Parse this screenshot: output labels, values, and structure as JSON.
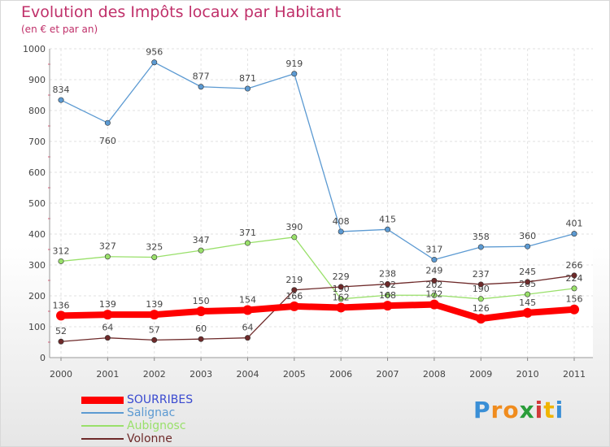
{
  "chart_data": {
    "type": "line",
    "title": "Evolution des Impôts locaux par Habitant",
    "subtitle": "(en € et par an)",
    "xlabel": "",
    "ylabel": "",
    "ylim": [
      0,
      1000
    ],
    "yticks": [
      0,
      100,
      200,
      300,
      400,
      500,
      600,
      700,
      800,
      900,
      1000
    ],
    "x": [
      "2000",
      "2001",
      "2002",
      "2003",
      "2004",
      "2005",
      "2006",
      "2007",
      "2008",
      "2009",
      "2010",
      "2011"
    ],
    "grid": true,
    "legend_position": "bottom-left",
    "series": [
      {
        "name": "SOURRIBES",
        "color": "#ff0000",
        "values": [
          136,
          139,
          139,
          150,
          154,
          166,
          162,
          168,
          172,
          126,
          145,
          156
        ],
        "labels": [
          "136",
          "139",
          "139",
          "150",
          "154",
          "166",
          "162",
          "168",
          "172",
          "126",
          "145",
          "156"
        ]
      },
      {
        "name": "Salignac",
        "color": "#5c9ad2",
        "values": [
          834,
          760,
          956,
          877,
          871,
          919,
          408,
          415,
          317,
          358,
          360,
          401
        ],
        "labels": [
          "834",
          "760",
          "956",
          "877",
          "871",
          "919",
          "408",
          "415",
          "317",
          "358",
          "360",
          "401"
        ]
      },
      {
        "name": "Aubignosc",
        "color": "#99e06a",
        "values": [
          312,
          327,
          325,
          347,
          371,
          390,
          190,
          202,
          202,
          190,
          205,
          224
        ],
        "labels": [
          "312",
          "327",
          "325",
          "347",
          "371",
          "390",
          "190",
          "202",
          "202",
          "190",
          "205",
          "224"
        ]
      },
      {
        "name": "Volonne",
        "color": "#6e2a2a",
        "values": [
          52,
          64,
          57,
          60,
          64,
          219,
          229,
          238,
          249,
          237,
          245,
          266
        ],
        "labels": [
          "52",
          "64",
          "57",
          "60",
          "64",
          "219",
          "229",
          "238",
          "249",
          "237",
          "245",
          "266"
        ]
      }
    ]
  },
  "logo": {
    "text": "Proxiti",
    "letters": [
      "P",
      "r",
      "o",
      "x",
      "i",
      "t",
      "i"
    ],
    "colors": [
      "#3a8fd6",
      "#f08c1e",
      "#f08c1e",
      "#2a9d3a",
      "#d13a3a",
      "#f0b400",
      "#3a8fd6"
    ]
  }
}
